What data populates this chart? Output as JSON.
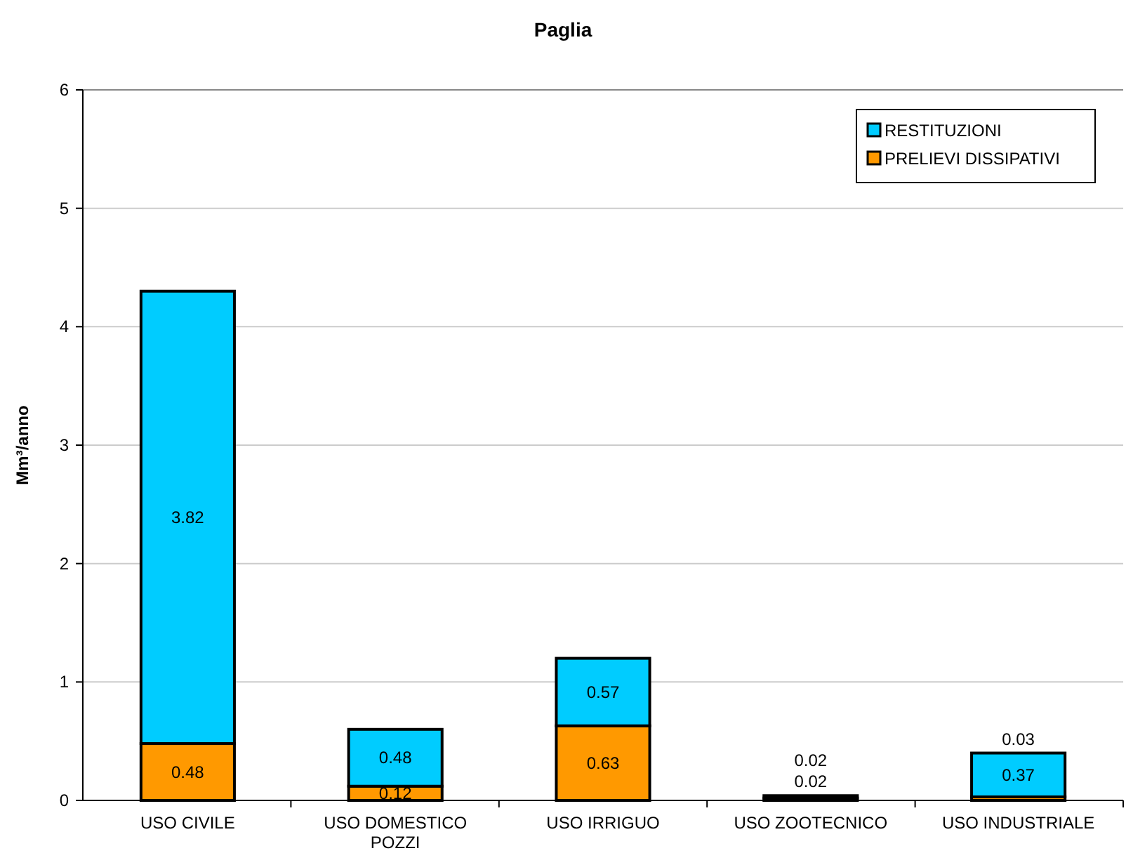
{
  "chart_data": {
    "type": "bar",
    "title": "Paglia",
    "ylabel": "Mm³/anno",
    "stacked": true,
    "categories": [
      "USO CIVILE",
      "USO DOMESTICO POZZI",
      "USO IRRIGUO",
      "USO ZOOTECNICO",
      "USO INDUSTRIALE"
    ],
    "series": [
      {
        "name": "PRELIEVI DISSIPATIVI",
        "color": "#ff9900",
        "values": [
          0.48,
          0.12,
          0.63,
          0.02,
          0.03
        ]
      },
      {
        "name": "RESTITUZIONI",
        "color": "#00ccff",
        "values": [
          3.82,
          0.48,
          0.57,
          0.02,
          0.37
        ]
      }
    ],
    "ylim": [
      0,
      6
    ],
    "yticks": [
      0,
      1,
      2,
      3,
      4,
      5,
      6
    ],
    "grid": "y",
    "legend": "top right",
    "data_labels": true
  }
}
